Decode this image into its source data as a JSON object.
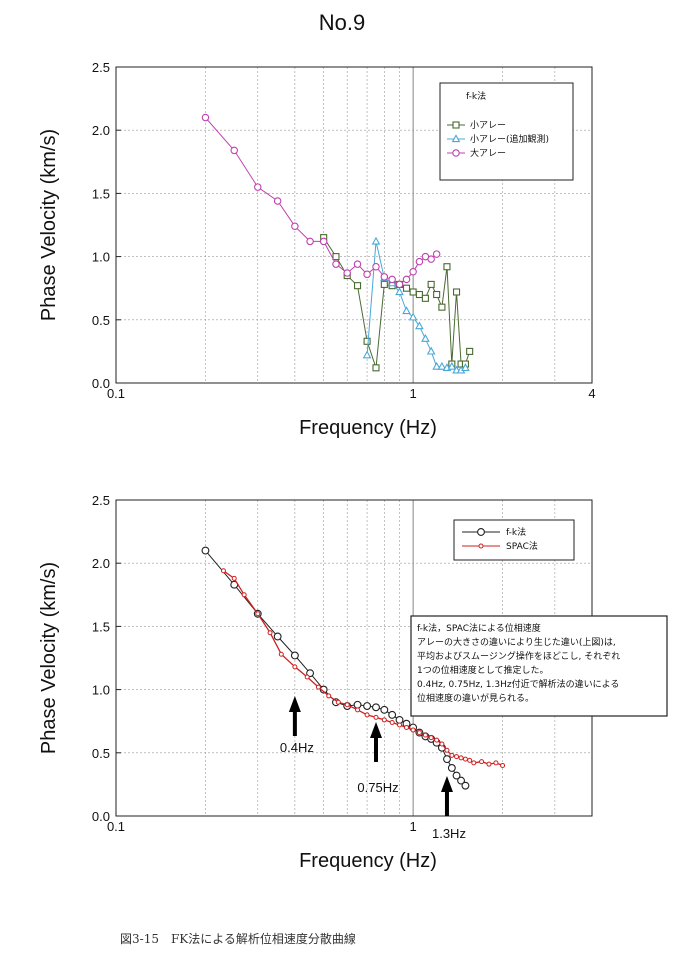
{
  "page_title": "No.9",
  "caption": "図3-15　FK法による解析位相速度分散曲線",
  "colors": {
    "small": "#4a6a30",
    "small_add": "#4aa8d8",
    "large": "#c040b0",
    "fk": "#222222",
    "spac": "#d02020"
  },
  "chart_data": [
    {
      "type": "line",
      "xscale": "log",
      "xlim": [
        0.1,
        4
      ],
      "ylim": [
        0,
        2.5
      ],
      "xlabel": "Frequency (Hz)",
      "ylabel": "Phase Velocity (km/s)",
      "x_ticks": [
        "0.1",
        "1",
        "4"
      ],
      "y_ticks": [
        "0.0",
        "0.5",
        "1.0",
        "1.5",
        "2.0",
        "2.5"
      ],
      "grid": true,
      "legend": {
        "title": "f-k法",
        "position": "top-right"
      },
      "series": [
        {
          "name": "小アレー",
          "marker": "square",
          "color": "#4a6a30",
          "x": [
            0.5,
            0.55,
            0.6,
            0.65,
            0.7,
            0.75,
            0.8,
            0.85,
            0.9,
            0.95,
            1.0,
            1.05,
            1.1,
            1.15,
            1.2,
            1.25,
            1.3,
            1.35,
            1.4,
            1.45,
            1.5,
            1.55
          ],
          "y": [
            1.15,
            1.0,
            0.85,
            0.77,
            0.33,
            0.12,
            0.78,
            0.77,
            0.78,
            0.75,
            0.72,
            0.7,
            0.67,
            0.78,
            0.7,
            0.6,
            0.92,
            0.15,
            0.72,
            0.15,
            0.15,
            0.25
          ]
        },
        {
          "name": "小アレー(追加観測)",
          "marker": "triangle",
          "color": "#4aa8d8",
          "x": [
            0.7,
            0.75,
            0.8,
            0.85,
            0.9,
            0.95,
            1.0,
            1.05,
            1.1,
            1.15,
            1.2,
            1.25,
            1.3,
            1.35,
            1.4,
            1.45,
            1.5
          ],
          "y": [
            0.22,
            1.12,
            0.83,
            0.79,
            0.72,
            0.57,
            0.52,
            0.45,
            0.35,
            0.25,
            0.13,
            0.13,
            0.12,
            0.13,
            0.1,
            0.1,
            0.12
          ]
        },
        {
          "name": "大アレー",
          "marker": "circle",
          "color": "#c040b0",
          "x": [
            0.2,
            0.25,
            0.3,
            0.35,
            0.4,
            0.45,
            0.5,
            0.55,
            0.6,
            0.65,
            0.7,
            0.75,
            0.8,
            0.85,
            0.9,
            0.95,
            1.0,
            1.05,
            1.1,
            1.15,
            1.2
          ],
          "y": [
            2.1,
            1.84,
            1.55,
            1.44,
            1.24,
            1.12,
            1.12,
            0.94,
            0.87,
            0.94,
            0.86,
            0.92,
            0.84,
            0.82,
            0.78,
            0.82,
            0.88,
            0.96,
            1.0,
            0.98,
            1.02
          ]
        }
      ]
    },
    {
      "type": "line",
      "xscale": "log",
      "xlim": [
        0.1,
        4
      ],
      "ylim": [
        0,
        2.5
      ],
      "xlabel": "Frequency (Hz)",
      "ylabel": "Phase Velocity (km/s)",
      "x_ticks": [
        "0.1",
        "1"
      ],
      "y_ticks": [
        "0.0",
        "0.5",
        "1.0",
        "1.5",
        "2.0",
        "2.5"
      ],
      "grid": true,
      "legend": {
        "position": "top-right"
      },
      "series": [
        {
          "name": "f-k法",
          "marker": "circle-open",
          "color": "#222222",
          "x": [
            0.2,
            0.25,
            0.3,
            0.35,
            0.4,
            0.45,
            0.5,
            0.55,
            0.6,
            0.65,
            0.7,
            0.75,
            0.8,
            0.85,
            0.9,
            0.95,
            1.0,
            1.05,
            1.1,
            1.15,
            1.2,
            1.25,
            1.3,
            1.35,
            1.4,
            1.45,
            1.5
          ],
          "y": [
            2.1,
            1.83,
            1.6,
            1.42,
            1.27,
            1.13,
            1.0,
            0.9,
            0.87,
            0.88,
            0.87,
            0.86,
            0.84,
            0.8,
            0.76,
            0.73,
            0.7,
            0.66,
            0.63,
            0.61,
            0.58,
            0.54,
            0.45,
            0.38,
            0.32,
            0.28,
            0.24
          ]
        },
        {
          "name": "SPAC法",
          "marker": "dot",
          "color": "#d02020",
          "x": [
            0.23,
            0.25,
            0.27,
            0.3,
            0.33,
            0.36,
            0.4,
            0.44,
            0.48,
            0.52,
            0.56,
            0.6,
            0.65,
            0.7,
            0.75,
            0.8,
            0.85,
            0.9,
            0.95,
            1.0,
            1.05,
            1.1,
            1.15,
            1.2,
            1.25,
            1.3,
            1.35,
            1.4,
            1.45,
            1.5,
            1.55,
            1.6,
            1.7,
            1.8,
            1.9,
            2.0
          ],
          "y": [
            1.94,
            1.88,
            1.75,
            1.6,
            1.45,
            1.28,
            1.18,
            1.1,
            1.02,
            0.95,
            0.9,
            0.88,
            0.84,
            0.8,
            0.78,
            0.76,
            0.74,
            0.72,
            0.7,
            0.68,
            0.66,
            0.64,
            0.62,
            0.6,
            0.57,
            0.52,
            0.48,
            0.47,
            0.46,
            0.45,
            0.44,
            0.42,
            0.43,
            0.41,
            0.42,
            0.4
          ]
        }
      ],
      "annotations": {
        "note_lines": [
          "f-k法，SPAC法による位相速度",
          "アレーの大きさの違いにより生じた違い(上図)は,",
          "平均およびスムージング操作をほどこし, それぞれ",
          "1つの位相速度として推定した。",
          "0.4Hz, 0.75Hz, 1.3Hz付近で解析法の違いによる",
          "位相速度の違いが見られる。"
        ],
        "arrows": [
          {
            "x": 0.4,
            "label": "0.4Hz"
          },
          {
            "x": 0.75,
            "label": "0.75Hz"
          },
          {
            "x": 1.3,
            "label": "1.3Hz"
          }
        ]
      }
    }
  ]
}
